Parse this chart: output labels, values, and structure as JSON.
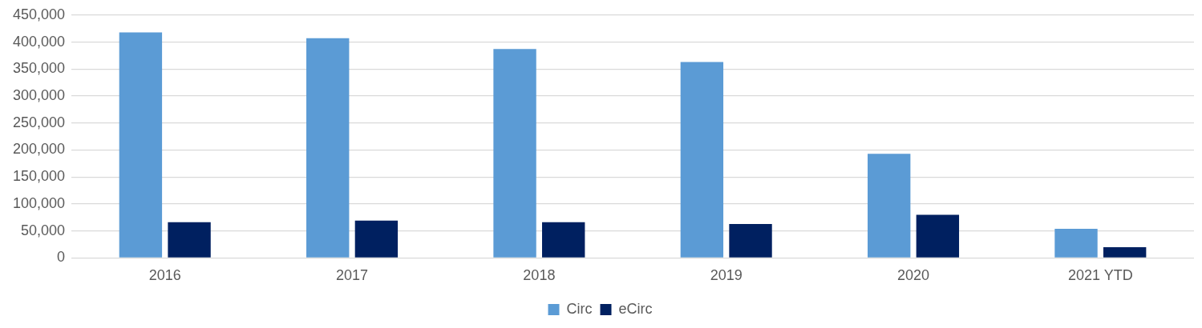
{
  "chart_data": {
    "type": "bar",
    "categories": [
      "2016",
      "2017",
      "2018",
      "2019",
      "2020",
      "2021 YTD"
    ],
    "series": [
      {
        "name": "Circ",
        "color": "#5b9bd5",
        "values": [
          418000,
          407000,
          387000,
          363000,
          193000,
          54000
        ]
      },
      {
        "name": "eCirc",
        "color": "#002060",
        "values": [
          66000,
          69000,
          66000,
          63000,
          80000,
          20000
        ]
      }
    ],
    "ylim": [
      0,
      450000
    ],
    "yticks": [
      {
        "value": 0,
        "label": "0"
      },
      {
        "value": 50000,
        "label": "50,000"
      },
      {
        "value": 100000,
        "label": "100,000"
      },
      {
        "value": 150000,
        "label": "150,000"
      },
      {
        "value": 200000,
        "label": "200,000"
      },
      {
        "value": 250000,
        "label": "250,000"
      },
      {
        "value": 300000,
        "label": "300,000"
      },
      {
        "value": 350000,
        "label": "350,000"
      },
      {
        "value": 400000,
        "label": "400,000"
      },
      {
        "value": 450000,
        "label": "450,000"
      }
    ],
    "grid": "y",
    "legend": "bottom"
  }
}
